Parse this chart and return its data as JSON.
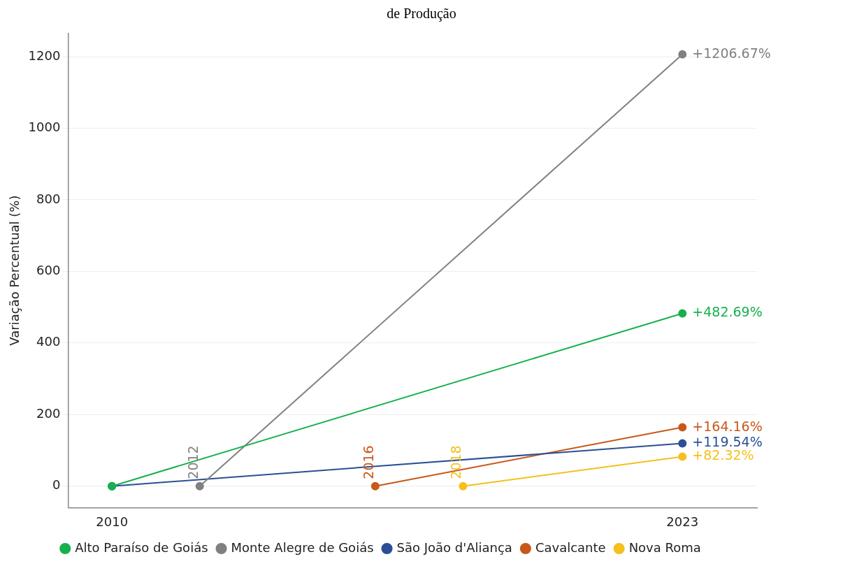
{
  "chart_data": {
    "type": "line",
    "title": "de Produção",
    "ylabel": "Variação Percentual (%)",
    "xlim": [
      2009,
      2024.7
    ],
    "xticks": [
      2010,
      2023
    ],
    "ylim": [
      -60,
      1265
    ],
    "yticks": [
      0,
      200,
      400,
      600,
      800,
      1000,
      1200
    ],
    "grid": "y",
    "legend": "bottom",
    "marker": "circle",
    "line_style": "solid",
    "series": [
      {
        "name": "Alto Paraíso de Goiás",
        "color": "#17b04f",
        "x": [
          2010,
          2023
        ],
        "values": [
          0,
          482.69
        ],
        "value_labels": [
          null,
          "+482.69%"
        ]
      },
      {
        "name": "Monte Alegre de Goiás",
        "color": "#808080",
        "x": [
          2012,
          2023
        ],
        "values": [
          0,
          1206.67
        ],
        "value_labels": [
          null,
          "+1206.67%"
        ]
      },
      {
        "name": "São João d'Aliança",
        "color": "#2a4f96",
        "x": [
          2010,
          2023
        ],
        "values": [
          0,
          119.54
        ],
        "value_labels": [
          null,
          "+119.54%"
        ]
      },
      {
        "name": "Cavalcante",
        "color": "#c8581a",
        "x": [
          2016,
          2023
        ],
        "values": [
          0,
          164.16
        ],
        "value_labels": [
          null,
          "+164.16%"
        ]
      },
      {
        "name": "Nova Roma",
        "color": "#f5c01c",
        "x": [
          2018,
          2023
        ],
        "values": [
          0,
          82.32
        ],
        "value_labels": [
          null,
          "+82.32%"
        ]
      }
    ],
    "annotations": [
      {
        "text": "2012",
        "x": 2012,
        "y": 0
      },
      {
        "text": "2016",
        "x": 2016,
        "y": 0
      },
      {
        "text": "2018",
        "x": 2018,
        "y": 0
      }
    ]
  }
}
